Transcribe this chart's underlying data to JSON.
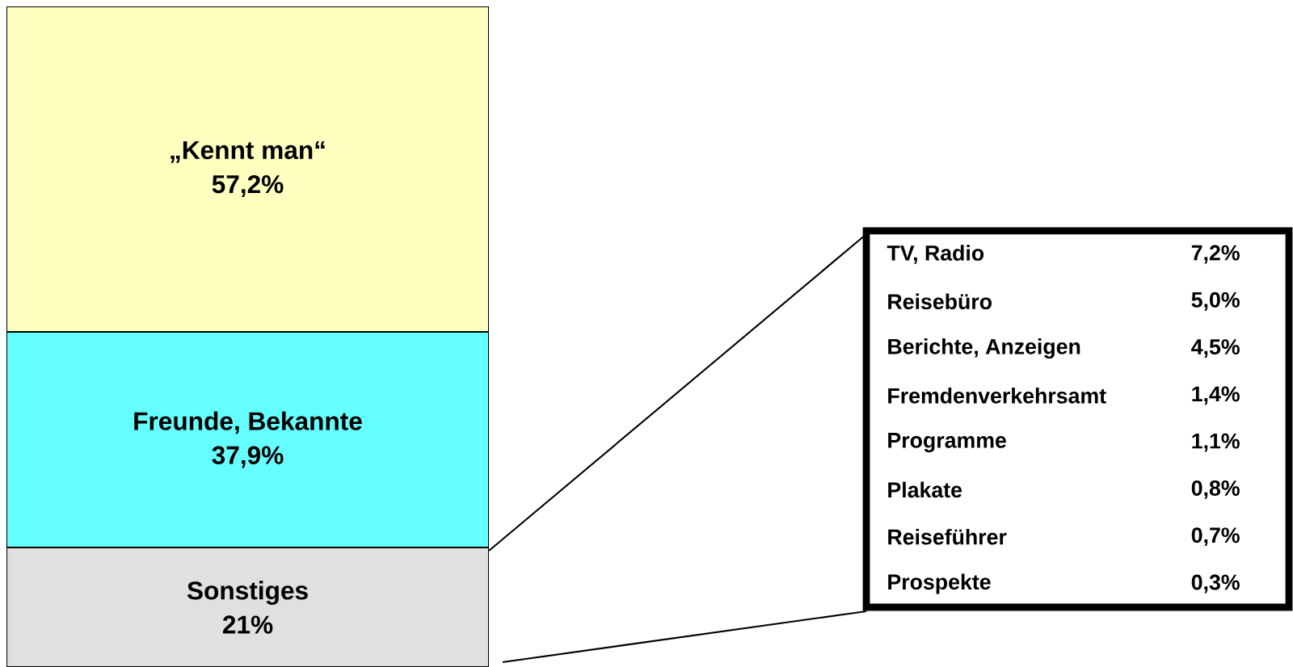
{
  "chart_data": [
    {
      "type": "bar",
      "stacked": true,
      "categories": [
        null
      ],
      "series": [
        {
          "name": "Sonstiges",
          "color": "#e0e0e0",
          "values": [
            21
          ],
          "value_labels": [
            "21%"
          ]
        },
        {
          "name": "Freunde, Bekannte",
          "color": "#66ffff",
          "values": [
            37.9
          ],
          "value_labels": [
            "37,9%"
          ]
        },
        {
          "name": "„Kennt man“",
          "color": "#ffffc0",
          "values": [
            57.2
          ],
          "value_labels": [
            "57,2%"
          ]
        }
      ]
    },
    {
      "type": "other",
      "categories": [
        "TV, Radio",
        "Reisebüro",
        "Berichte, Anzeigen",
        "Fremdenverkehrsamt",
        "Programme",
        "Plakate",
        "Reiseführer",
        "Prospekte"
      ],
      "value_labels": [
        "7,2%",
        "5,0%",
        "4,5%",
        "1,4%",
        "1,1%",
        "0,8%",
        "0,7%",
        "0,3%"
      ]
    }
  ]
}
